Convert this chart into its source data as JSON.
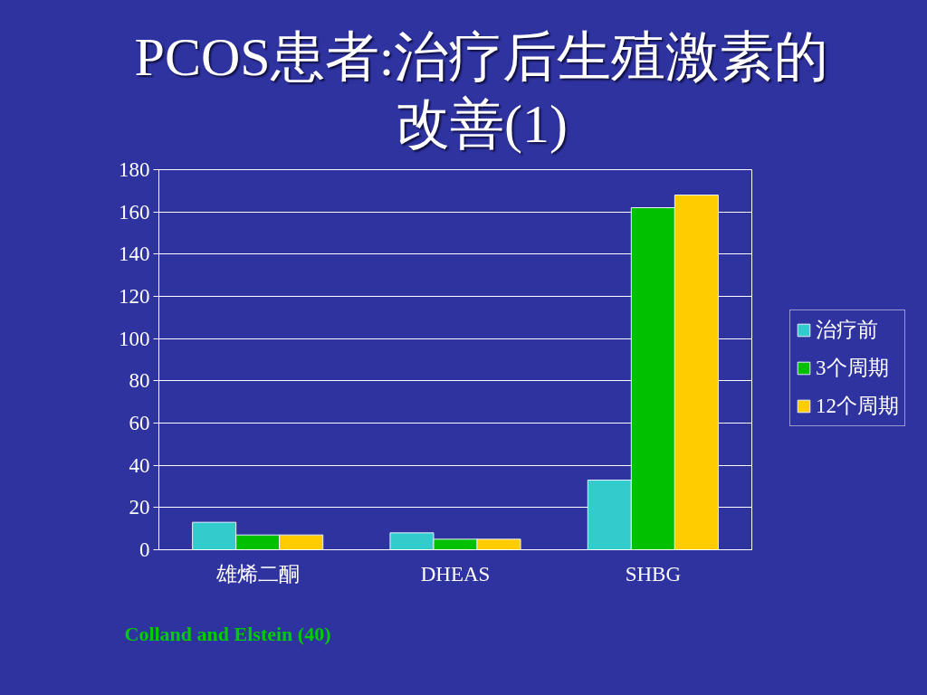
{
  "chart_data": {
    "type": "bar",
    "title": "PCOS患者:治疗后生殖激素的改善(1)",
    "categories": [
      "雄烯二酮",
      "DHEAS",
      "SHBG"
    ],
    "series": [
      {
        "name": "治疗前",
        "color": "#33cccc",
        "values": [
          13,
          8,
          33
        ]
      },
      {
        "name": "3个周期",
        "color": "#00c000",
        "values": [
          7,
          5,
          162
        ]
      },
      {
        "name": "12个周期",
        "color": "#ffcc00",
        "values": [
          7,
          5,
          168
        ]
      }
    ],
    "ylim": [
      0,
      180
    ],
    "yticks": [
      0,
      20,
      40,
      60,
      80,
      100,
      120,
      140,
      160,
      180
    ],
    "grid": "y",
    "legend": "right",
    "annotations": [
      "Colland and Elstein (40)"
    ]
  }
}
